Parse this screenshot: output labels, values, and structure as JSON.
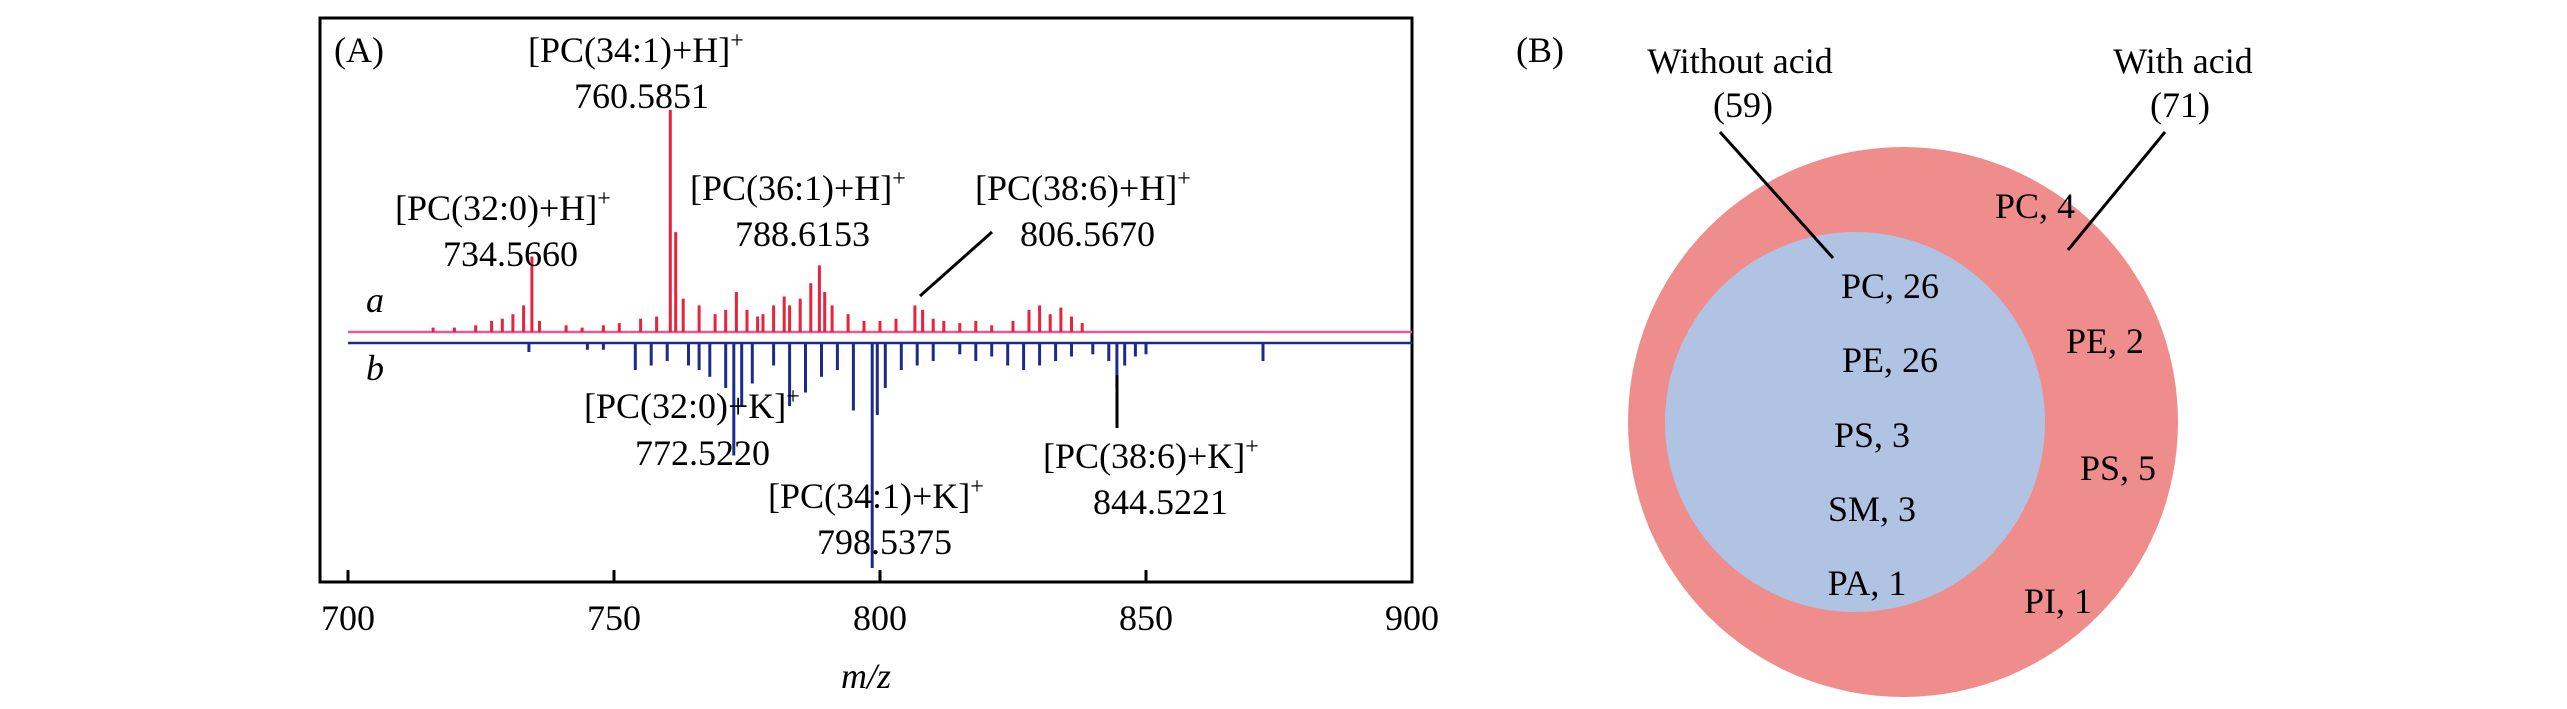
{
  "chart_data": [
    {
      "type": "bar",
      "panel_label": "(A)",
      "xlabel": "m/z",
      "xlim": [
        700,
        900
      ],
      "x_ticks": [
        700,
        750,
        800,
        850,
        900
      ],
      "grid": false,
      "spectra": [
        {
          "name": "a",
          "direction": "up",
          "color": "#e8233c",
          "x": [
            716,
            720,
            724,
            727,
            729,
            731,
            733,
            734.566,
            736,
            741,
            744,
            748,
            751,
            755,
            758,
            760.5851,
            761.6,
            763,
            766,
            769,
            771,
            773,
            775,
            777,
            778,
            780,
            782,
            783,
            785,
            787,
            788.6153,
            789.6,
            791,
            794,
            797,
            800,
            803,
            806.567,
            808,
            810,
            812,
            815,
            818,
            821,
            825,
            828,
            830,
            832,
            834,
            836,
            838
          ],
          "height": [
            0.02,
            0.02,
            0.03,
            0.05,
            0.06,
            0.08,
            0.12,
            0.34,
            0.05,
            0.03,
            0.02,
            0.03,
            0.04,
            0.06,
            0.07,
            1.0,
            0.45,
            0.15,
            0.12,
            0.08,
            0.1,
            0.18,
            0.1,
            0.07,
            0.08,
            0.12,
            0.16,
            0.12,
            0.15,
            0.22,
            0.3,
            0.18,
            0.12,
            0.08,
            0.05,
            0.05,
            0.06,
            0.12,
            0.1,
            0.06,
            0.05,
            0.04,
            0.05,
            0.03,
            0.05,
            0.1,
            0.12,
            0.08,
            0.11,
            0.07,
            0.04
          ]
        },
        {
          "name": "b",
          "direction": "down",
          "color": "#1c2a8c",
          "x": [
            734,
            745,
            748,
            754,
            757,
            760,
            764,
            766,
            768,
            771,
            772.522,
            774,
            776,
            780,
            783,
            786,
            789,
            792,
            795,
            798.5375,
            799.5,
            801,
            804,
            807,
            810,
            815,
            818,
            821,
            824,
            827,
            830,
            833,
            836,
            840,
            843,
            844.5221,
            846,
            848,
            850,
            872
          ],
          "height": [
            0.04,
            0.03,
            0.03,
            0.12,
            0.1,
            0.08,
            0.1,
            0.12,
            0.15,
            0.2,
            0.5,
            0.28,
            0.18,
            0.1,
            0.28,
            0.22,
            0.15,
            0.12,
            0.3,
            1.0,
            0.32,
            0.2,
            0.12,
            0.1,
            0.08,
            0.05,
            0.08,
            0.06,
            0.1,
            0.12,
            0.1,
            0.08,
            0.06,
            0.05,
            0.08,
            0.2,
            0.1,
            0.06,
            0.05,
            0.08
          ]
        }
      ],
      "annotations": [
        {
          "species": "[PC(34:1)+H]",
          "charge": "+",
          "mz": "760.5851"
        },
        {
          "species": "[PC(32:0)+H]",
          "charge": "+",
          "mz": "734.5660"
        },
        {
          "species": "[PC(36:1)+H]",
          "charge": "+",
          "mz": "788.6153"
        },
        {
          "species": "[PC(38:6)+H]",
          "charge": "+",
          "mz": "806.5670"
        },
        {
          "species": "[PC(32:0)+K]",
          "charge": "+",
          "mz": "772.5220"
        },
        {
          "species": "[PC(34:1)+K]",
          "charge": "+",
          "mz": "798.5375"
        },
        {
          "species": "[PC(38:6)+K]",
          "charge": "+",
          "mz": "844.5221"
        }
      ]
    },
    {
      "type": "venn",
      "panel_label": "(B)",
      "sets": [
        {
          "name": "Without acid",
          "count": "(59)",
          "color": "#b1c3e3"
        },
        {
          "name": "With acid",
          "count": "(71)",
          "color": "#ef8d8d"
        }
      ],
      "inner_items": [
        "PC, 26",
        "PE, 26",
        "PS, 3",
        "SM, 3",
        "PA, 1"
      ],
      "outer_items": [
        "PC, 4",
        "PE, 2",
        "PS, 5",
        "PI, 1"
      ]
    }
  ]
}
